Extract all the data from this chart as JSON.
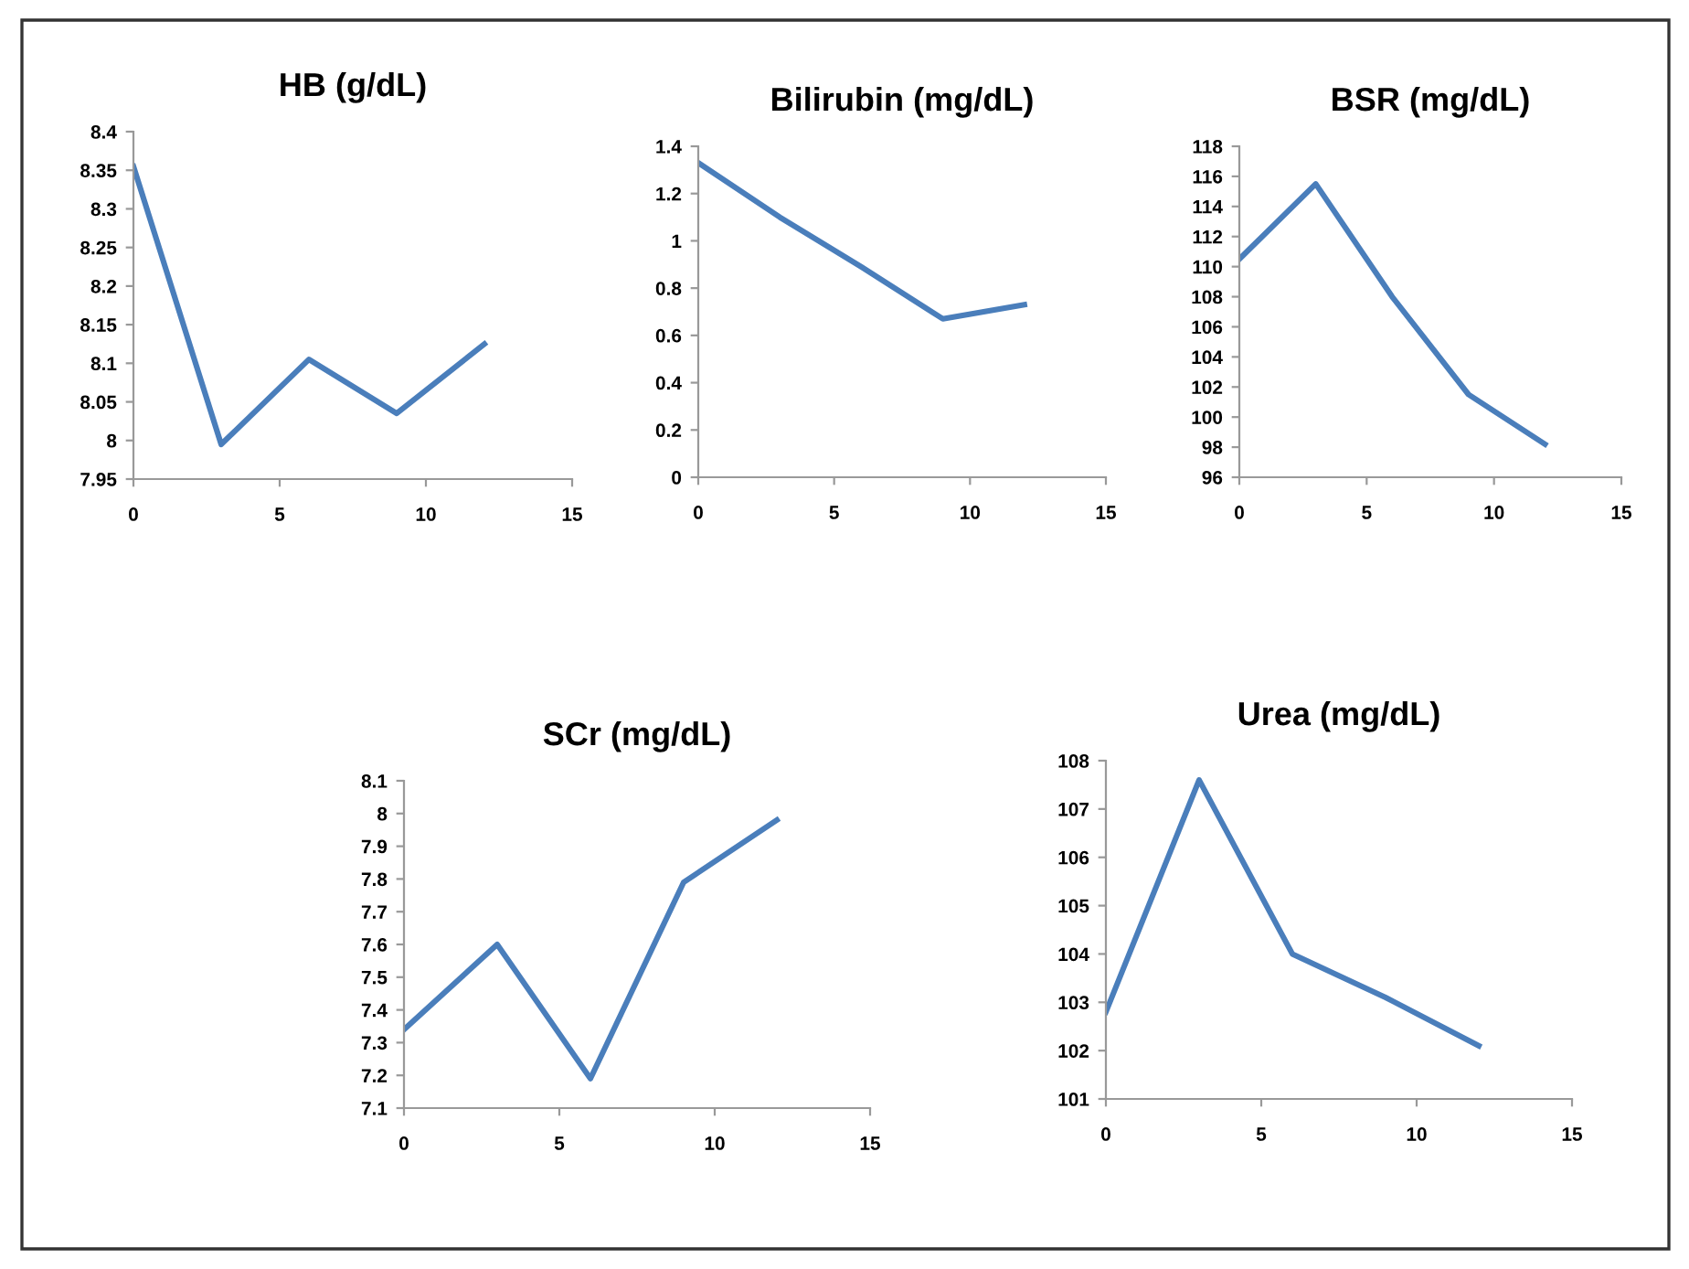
{
  "chart_data": [
    {
      "type": "line",
      "title": "HB (g/dL)",
      "x": [
        0,
        3,
        6,
        9,
        12
      ],
      "series": [
        {
          "color": "#4a7ebb",
          "values": [
            8.355,
            7.995,
            8.105,
            8.035,
            8.125
          ]
        }
      ],
      "xlim": [
        0,
        15
      ],
      "xticks": [
        0,
        5,
        10,
        15
      ],
      "ylim": [
        7.95,
        8.4
      ],
      "yticks": [
        7.95,
        8,
        8.05,
        8.1,
        8.15,
        8.2,
        8.25,
        8.3,
        8.35,
        8.4
      ],
      "grid": false
    },
    {
      "type": "line",
      "title": "Bilirubin (mg/dL)",
      "x": [
        0,
        3,
        6,
        9,
        12
      ],
      "series": [
        {
          "color": "#4a7ebb",
          "values": [
            1.33,
            1.1,
            0.89,
            0.67,
            0.73
          ]
        }
      ],
      "xlim": [
        0,
        15
      ],
      "xticks": [
        0,
        5,
        10,
        15
      ],
      "ylim": [
        0,
        1.4
      ],
      "yticks": [
        0,
        0.2,
        0.4,
        0.6,
        0.8,
        1,
        1.2,
        1.4
      ],
      "grid": false
    },
    {
      "type": "line",
      "title": "BSR (mg/dL)",
      "x": [
        0,
        3,
        6,
        9,
        12
      ],
      "series": [
        {
          "color": "#4a7ebb",
          "values": [
            110.5,
            115.5,
            108,
            101.5,
            98.2
          ]
        }
      ],
      "xlim": [
        0,
        15
      ],
      "xticks": [
        0,
        5,
        10,
        15
      ],
      "ylim": [
        96,
        118
      ],
      "yticks": [
        96,
        98,
        100,
        102,
        104,
        106,
        108,
        110,
        112,
        114,
        116,
        118
      ],
      "grid": false
    },
    {
      "type": "line",
      "title": "SCr (mg/dL)",
      "x": [
        0,
        3,
        6,
        9,
        12
      ],
      "series": [
        {
          "color": "#4a7ebb",
          "values": [
            7.34,
            7.6,
            7.19,
            7.79,
            7.98
          ]
        }
      ],
      "xlim": [
        0,
        15
      ],
      "xticks": [
        0,
        5,
        10,
        15
      ],
      "ylim": [
        7.1,
        8.1
      ],
      "yticks": [
        7.1,
        7.2,
        7.3,
        7.4,
        7.5,
        7.6,
        7.7,
        7.8,
        7.9,
        8,
        8.1
      ],
      "grid": false
    },
    {
      "type": "line",
      "title": "Urea (mg/dL)",
      "x": [
        0,
        3,
        6,
        9,
        12
      ],
      "series": [
        {
          "color": "#4a7ebb",
          "values": [
            102.8,
            107.6,
            104.0,
            103.1,
            102.1
          ]
        }
      ],
      "xlim": [
        0,
        15
      ],
      "xticks": [
        0,
        5,
        10,
        15
      ],
      "ylim": [
        101,
        108
      ],
      "yticks": [
        101,
        102,
        103,
        104,
        105,
        106,
        107,
        108
      ],
      "grid": false
    }
  ]
}
